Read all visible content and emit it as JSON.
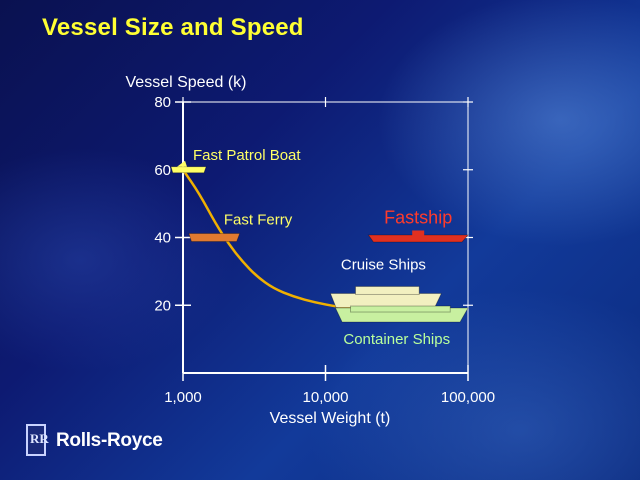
{
  "slide": {
    "title": "Vessel Size and Speed",
    "brand": "Rolls-Royce",
    "brand_mark": "RR"
  },
  "chart_data": {
    "type": "scatter",
    "ylabel": "Vessel Speed (k)",
    "xlabel": "Vessel Weight (t)",
    "x_scale": "log",
    "xlim": [
      1000,
      100000
    ],
    "ylim": [
      0,
      80
    ],
    "x_ticks": [
      {
        "value": 1000,
        "label": "1,000"
      },
      {
        "value": 10000,
        "label": "10,000"
      },
      {
        "value": 100000,
        "label": "100,000"
      }
    ],
    "y_ticks": [
      {
        "value": 20,
        "label": "20"
      },
      {
        "value": 40,
        "label": "40"
      },
      {
        "value": 60,
        "label": "60"
      },
      {
        "value": 80,
        "label": "80"
      }
    ],
    "series": [
      {
        "name": "Fast Patrol Boat",
        "color": "#ffff66",
        "label_color": "#ffff66",
        "x": [
          1000,
          1500
        ],
        "y": [
          60,
          60
        ]
      },
      {
        "name": "Fast Ferry",
        "color": "#e07a30",
        "label_color": "#ffff66",
        "x": [
          1100,
          2500
        ],
        "y": [
          40,
          40
        ]
      },
      {
        "name": "Fastship",
        "color": "#e03020",
        "label_color": "#ff3b2a",
        "x": [
          20000,
          100000
        ],
        "y": [
          40,
          40
        ]
      },
      {
        "name": "Cruise Ships",
        "color": "#f2f0c0",
        "label_color": "#ffffff",
        "x": [
          10000,
          65000
        ],
        "y": [
          22,
          22
        ]
      },
      {
        "name": "Container Ships",
        "color": "#c8f0a0",
        "label_color": "#b9ff9c",
        "x": [
          10000,
          100000
        ],
        "y": [
          18,
          18
        ]
      }
    ],
    "trend_curve": {
      "color": "#f0b000",
      "x": [
        1000,
        1300,
        1700,
        2100,
        2600,
        3300,
        4300,
        6000,
        8500,
        12000,
        18000
      ],
      "y": [
        60,
        53,
        44,
        38,
        33,
        28.5,
        25,
        22.5,
        20.8,
        19.6,
        18.6
      ]
    },
    "grid": false
  }
}
